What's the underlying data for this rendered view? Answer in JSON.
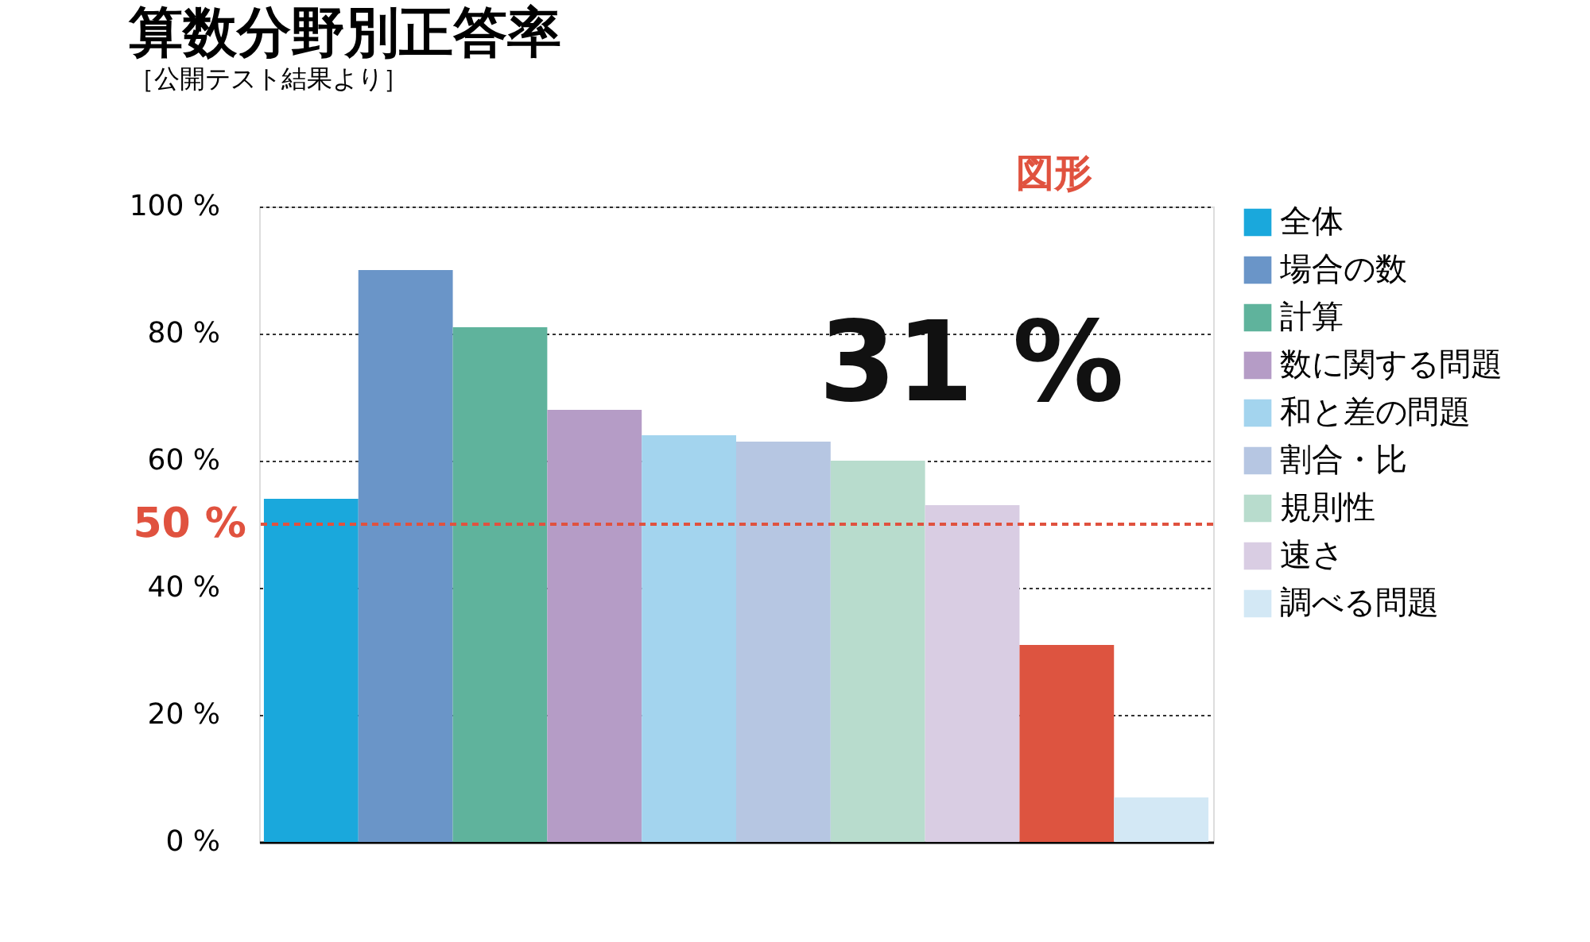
{
  "chart_data": {
    "type": "bar",
    "title": "算数分野別正答率",
    "subtitle": "［公開テスト結果より］",
    "categories": [
      null,
      null,
      null,
      null,
      null,
      null,
      null,
      null,
      null,
      null
    ],
    "series": [
      {
        "name": "全体",
        "color": "#1aa8dc",
        "values": [
          54,
          null,
          null,
          null,
          null,
          null,
          null,
          null,
          null,
          null
        ]
      },
      {
        "name": "場合の数",
        "color": "#6a95c8",
        "values": [
          null,
          90,
          null,
          null,
          null,
          null,
          null,
          null,
          null,
          null
        ]
      },
      {
        "name": "計算",
        "color": "#5fb39c",
        "values": [
          null,
          null,
          81,
          null,
          null,
          null,
          null,
          null,
          null,
          null
        ]
      },
      {
        "name": "数に関する問題",
        "color": "#b59cc6",
        "values": [
          null,
          null,
          null,
          68,
          null,
          null,
          null,
          null,
          null,
          null
        ]
      },
      {
        "name": "和と差の問題",
        "color": "#a3d4ee",
        "values": [
          null,
          null,
          null,
          null,
          64,
          null,
          null,
          null,
          null,
          null
        ]
      },
      {
        "name": "割合・比",
        "color": "#b6c6e2",
        "values": [
          null,
          null,
          null,
          null,
          null,
          63,
          null,
          null,
          null,
          null
        ]
      },
      {
        "name": "規則性",
        "color": "#b8dccd",
        "values": [
          null,
          null,
          null,
          null,
          null,
          null,
          60,
          null,
          null,
          null
        ]
      },
      {
        "name": "速さ",
        "color": "#d9cde3",
        "values": [
          null,
          null,
          null,
          null,
          null,
          null,
          null,
          53,
          null,
          null
        ]
      },
      {
        "color": "#dd5440",
        "values": [
          null,
          null,
          null,
          null,
          null,
          null,
          null,
          null,
          31,
          null
        ],
        "value_labels": [
          null,
          null,
          null,
          null,
          null,
          null,
          null,
          null,
          "31 %",
          null
        ]
      },
      {
        "name": "調べる問題",
        "color": "#d3e8f5",
        "values": [
          null,
          null,
          null,
          null,
          null,
          null,
          null,
          null,
          null,
          7
        ]
      }
    ],
    "annotations": [
      "図形"
    ],
    "ylim": [
      0,
      100
    ],
    "yticks": [
      {
        "value": 0,
        "label": "0 %"
      },
      {
        "value": 20,
        "label": "20 %"
      },
      {
        "value": 40,
        "label": "40 %"
      },
      {
        "value": 60,
        "label": "60 %"
      },
      {
        "value": 80,
        "label": "80 %"
      },
      {
        "value": 100,
        "label": "100 %"
      }
    ],
    "ref_lines": [
      {
        "axis": "y",
        "value": 50,
        "label": "50 %",
        "color": "#e0523f",
        "line_style": "dashed"
      }
    ],
    "grid": "y",
    "legend": "right",
    "tick_labels": "y"
  }
}
